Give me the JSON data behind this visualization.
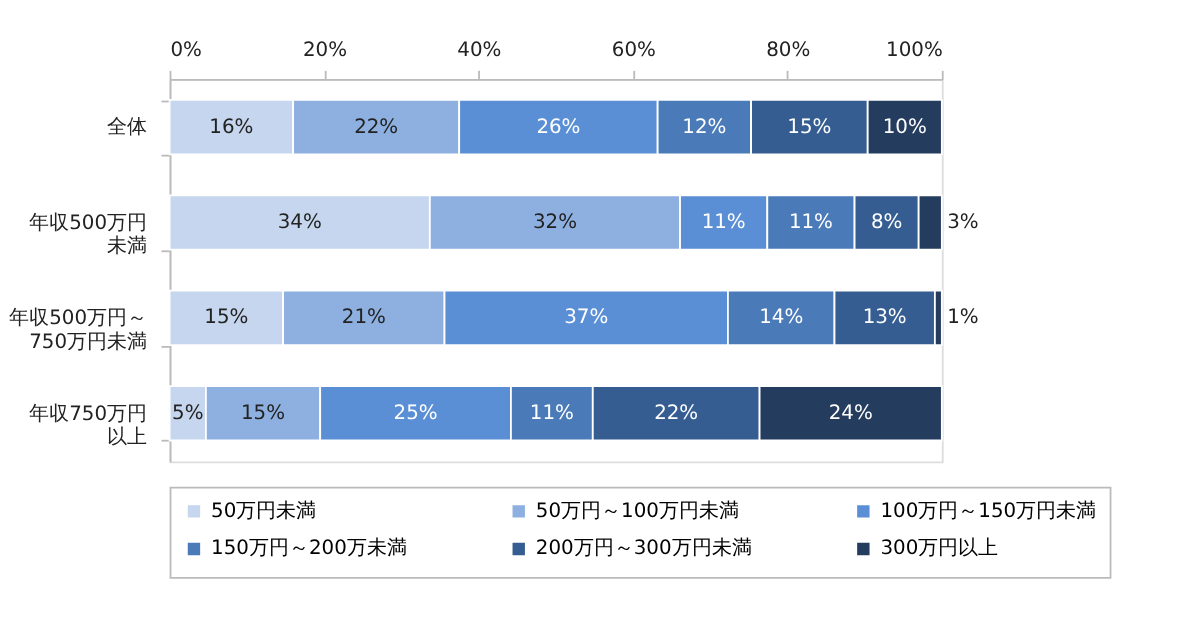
{
  "chart_data": {
    "type": "bar",
    "orientation": "horizontal",
    "stacked": true,
    "categories": [
      "全体",
      "年収500万円未満",
      "年収500万円～750万円未満",
      "年収750万円以上"
    ],
    "xlim": [
      0,
      100
    ],
    "xticks": [
      {
        "value": 0,
        "label": "0%"
      },
      {
        "value": 20,
        "label": "20%"
      },
      {
        "value": 40,
        "label": "40%"
      },
      {
        "value": 60,
        "label": "60%"
      },
      {
        "value": 80,
        "label": "80%"
      },
      {
        "value": 100,
        "label": "100%"
      }
    ],
    "grid": false,
    "legend": "bottom",
    "series": [
      {
        "name": "50万円未満",
        "color": "#c5d6ee",
        "values": [
          16,
          33.7,
          14.7,
          4.7
        ],
        "value_labels": [
          "16%",
          "34%",
          "15%",
          "5%"
        ]
      },
      {
        "name": "50万円～100万円未満",
        "color": "#8db0e0",
        "values": [
          21.5,
          32.4,
          20.9,
          14.8
        ],
        "value_labels": [
          "22%",
          "32%",
          "21%",
          "15%"
        ]
      },
      {
        "name": "100万円～150万円未満",
        "color": "#5a8fd6",
        "values": [
          25.7,
          11.3,
          36.7,
          24.7
        ],
        "value_labels": [
          "26%",
          "11%",
          "37%",
          "25%"
        ]
      },
      {
        "name": "150万円～200万未満",
        "color": "#4a7ab8",
        "values": [
          12.1,
          11.3,
          13.8,
          10.6
        ],
        "value_labels": [
          "12%",
          "11%",
          "14%",
          "11%"
        ]
      },
      {
        "name": "200万円～300万円未満",
        "color": "#355d92",
        "values": [
          15.1,
          8.3,
          13.0,
          21.6
        ],
        "value_labels": [
          "15%",
          "8%",
          "13%",
          "22%"
        ]
      },
      {
        "name": "300万円以上",
        "color": "#243c5e",
        "values": [
          9.6,
          3.0,
          0.9,
          23.6
        ],
        "value_labels": [
          "10%",
          "3%",
          "1%",
          "24%"
        ]
      }
    ]
  }
}
